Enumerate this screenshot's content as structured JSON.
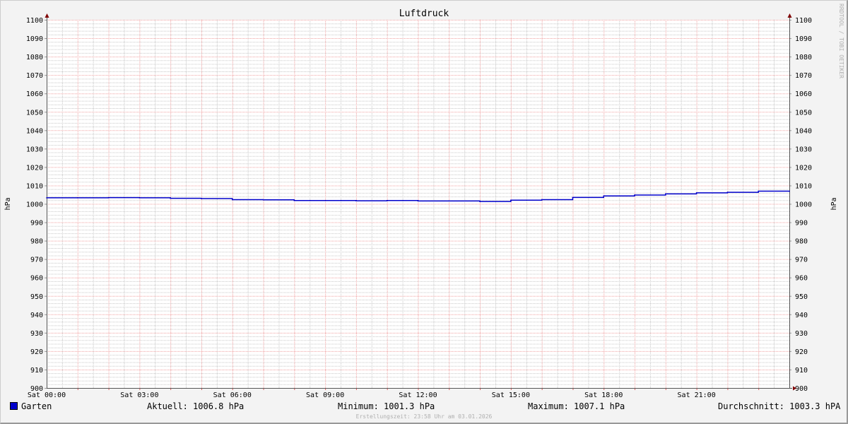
{
  "chart_data": {
    "type": "line",
    "title": "Luftdruck",
    "ylabel": "hPa",
    "ylabel_right": "hPa",
    "ylim": [
      900,
      1100
    ],
    "yticks": [
      900,
      910,
      920,
      930,
      940,
      950,
      960,
      970,
      980,
      990,
      1000,
      1010,
      1020,
      1030,
      1040,
      1050,
      1060,
      1070,
      1080,
      1090,
      1100
    ],
    "xlim_hours": [
      0,
      24
    ],
    "xtick_labels": [
      "Sat 00:00",
      "Sat 03:00",
      "Sat 06:00",
      "Sat 09:00",
      "Sat 12:00",
      "Sat 15:00",
      "Sat 18:00",
      "Sat 21:00"
    ],
    "grid": true,
    "series": [
      {
        "name": "Garten",
        "color": "#0000cc",
        "x_hours": [
          0,
          1,
          2,
          3,
          4,
          5,
          6,
          7,
          8,
          9,
          10,
          11,
          12,
          13,
          14,
          15,
          16,
          17,
          18,
          19,
          20,
          21,
          22,
          23,
          24
        ],
        "values": [
          1003.3,
          1003.3,
          1003.4,
          1003.3,
          1003.0,
          1002.9,
          1002.3,
          1002.2,
          1001.8,
          1001.8,
          1001.7,
          1001.8,
          1001.6,
          1001.6,
          1001.3,
          1002.0,
          1002.3,
          1003.5,
          1004.3,
          1004.8,
          1005.4,
          1006.0,
          1006.3,
          1006.9,
          1006.8
        ]
      }
    ],
    "watermark": "RRDTOOL / TOBI OETIKER"
  },
  "legend": {
    "series_name": "Garten",
    "current": "Aktuell: 1006.8 hPa",
    "minimum": "Minimum: 1001.3 hPa",
    "maximum": "Maximum: 1007.1 hPa",
    "average": "Durchschnitt: 1003.3 hPA"
  },
  "footer": "Erstellungszeit: 23:58 Uhr am 03.01.2026",
  "colors": {
    "major_grid": "#f0a0a0",
    "minor_grid": "#c8c8c8",
    "line": "#0000cc",
    "axis_arrow": "#800000"
  }
}
